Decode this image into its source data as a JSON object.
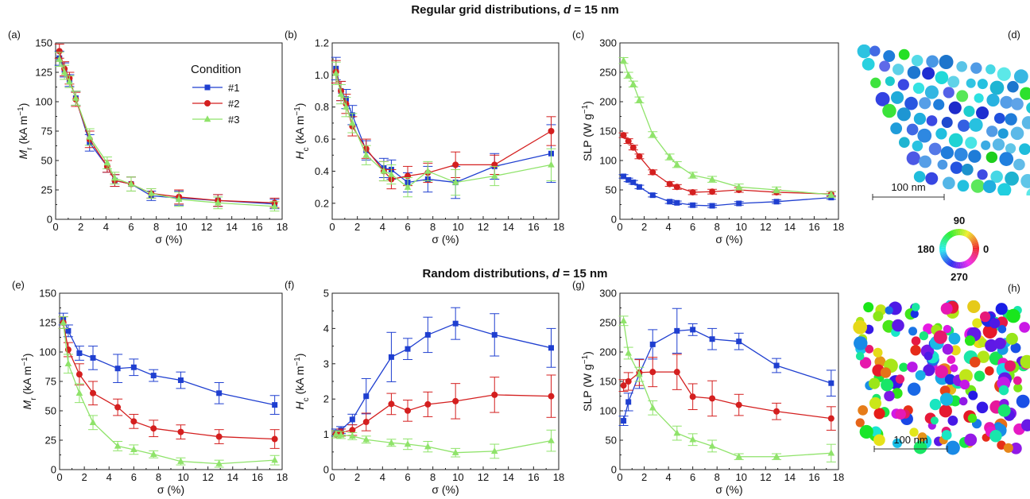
{
  "figure": {
    "row_titles": [
      {
        "prefix": "Regular grid distributions, ",
        "var": "d",
        "suffix": " = 15 nm"
      },
      {
        "prefix": "Random distributions, ",
        "var": "d",
        "suffix": " = 15 nm"
      }
    ],
    "legend": {
      "title": "Condition",
      "entries": [
        "#1",
        "#2",
        "#3"
      ]
    },
    "series_colors": [
      "#1f3fd0",
      "#d41f1f",
      "#8fe36a"
    ],
    "scale_bar_label": "100 nm",
    "colorwheel_labels": {
      "top": "90",
      "left": "180",
      "right": "0",
      "bottom": "270"
    }
  },
  "chart_data": [
    {
      "type": "line",
      "panel": "(a)",
      "xlabel": "σ (%)",
      "ylabel_main": "M",
      "ylabel_sub": "r",
      "ylabel_unit": " (kA m",
      "xlim": [
        0,
        18
      ],
      "ylim": [
        0,
        150
      ],
      "xticks": [
        0,
        2,
        4,
        6,
        8,
        10,
        12,
        14,
        16,
        18
      ],
      "yticks": [
        0,
        25,
        50,
        75,
        100,
        125,
        150
      ],
      "series": [
        {
          "name": "#1",
          "marker": "square",
          "x": [
            0.3,
            0.7,
            1.1,
            1.6,
            2.7,
            4.1,
            4.7,
            6.0,
            7.6,
            9.8,
            12.9,
            17.4
          ],
          "y": [
            137,
            127,
            118,
            103,
            65,
            45,
            33,
            30,
            20,
            18,
            16,
            13
          ],
          "err": [
            6,
            6,
            5,
            6,
            7,
            5,
            5,
            6,
            4,
            6,
            5,
            4
          ]
        },
        {
          "name": "#2",
          "marker": "circle",
          "x": [
            0.3,
            0.7,
            1.1,
            1.6,
            2.7,
            4.1,
            4.7,
            6.0,
            7.6,
            9.8,
            12.9,
            17.4
          ],
          "y": [
            143,
            128,
            120,
            102,
            68,
            45,
            33,
            30,
            22,
            19,
            16,
            14
          ],
          "err": [
            6,
            6,
            5,
            6,
            7,
            5,
            5,
            6,
            4,
            6,
            5,
            4
          ]
        },
        {
          "name": "#3",
          "marker": "triangle",
          "x": [
            0.3,
            0.7,
            1.1,
            1.6,
            2.7,
            4.1,
            4.7,
            6.0,
            7.6,
            9.8,
            12.9,
            17.4
          ],
          "y": [
            136,
            125,
            117,
            103,
            70,
            48,
            35,
            30,
            22,
            17,
            14,
            11
          ],
          "err": [
            6,
            6,
            5,
            6,
            7,
            5,
            5,
            6,
            4,
            6,
            5,
            4
          ]
        }
      ]
    },
    {
      "type": "line",
      "panel": "(b)",
      "xlabel": "σ (%)",
      "ylabel_main": "H",
      "ylabel_sub": "c",
      "ylabel_unit": " (kA m",
      "xlim": [
        0,
        18
      ],
      "ylim": [
        0.1,
        1.2
      ],
      "xticks": [
        0,
        2,
        4,
        6,
        8,
        10,
        12,
        14,
        16,
        18
      ],
      "yticks": [
        0.2,
        0.4,
        0.6,
        0.8,
        1.0,
        1.2
      ],
      "series": [
        {
          "name": "#1",
          "marker": "square",
          "x": [
            0.3,
            0.7,
            1.1,
            1.6,
            2.7,
            4.1,
            4.7,
            6.0,
            7.6,
            9.8,
            12.9,
            17.4
          ],
          "y": [
            1.04,
            0.9,
            0.85,
            0.75,
            0.53,
            0.42,
            0.41,
            0.33,
            0.35,
            0.33,
            0.43,
            0.51
          ],
          "err": [
            0.07,
            0.06,
            0.06,
            0.06,
            0.06,
            0.06,
            0.06,
            0.06,
            0.08,
            0.1,
            0.08,
            0.18
          ]
        },
        {
          "name": "#2",
          "marker": "circle",
          "x": [
            0.3,
            0.7,
            1.1,
            1.6,
            2.7,
            4.1,
            4.7,
            6.0,
            7.6,
            9.8,
            12.9,
            17.4
          ],
          "y": [
            1.02,
            0.9,
            0.82,
            0.68,
            0.54,
            0.4,
            0.35,
            0.37,
            0.39,
            0.44,
            0.44,
            0.65
          ],
          "err": [
            0.07,
            0.06,
            0.06,
            0.06,
            0.06,
            0.06,
            0.06,
            0.06,
            0.06,
            0.08,
            0.06,
            0.09
          ]
        },
        {
          "name": "#3",
          "marker": "triangle",
          "x": [
            0.3,
            0.7,
            1.1,
            1.6,
            2.7,
            4.1,
            4.7,
            6.0,
            7.6,
            9.8,
            12.9,
            17.4
          ],
          "y": [
            1.01,
            0.88,
            0.8,
            0.7,
            0.5,
            0.4,
            0.38,
            0.3,
            0.4,
            0.33,
            0.37,
            0.44
          ],
          "err": [
            0.07,
            0.06,
            0.06,
            0.06,
            0.06,
            0.06,
            0.06,
            0.06,
            0.06,
            0.08,
            0.06,
            0.1
          ]
        }
      ]
    },
    {
      "type": "line",
      "panel": "(c)",
      "xlabel": "σ (%)",
      "ylabel_main": "SLP",
      "ylabel_sub": "",
      "ylabel_unit": " (W g",
      "xlim": [
        0,
        18
      ],
      "ylim": [
        0,
        300
      ],
      "xticks": [
        0,
        2,
        4,
        6,
        8,
        10,
        12,
        14,
        16,
        18
      ],
      "yticks": [
        0,
        50,
        100,
        150,
        200,
        250,
        300
      ],
      "series": [
        {
          "name": "#1",
          "marker": "square",
          "x": [
            0.3,
            0.7,
            1.1,
            1.6,
            2.7,
            4.1,
            4.7,
            6.0,
            7.6,
            9.8,
            12.9,
            17.4
          ],
          "y": [
            73,
            67,
            63,
            55,
            41,
            30,
            28,
            24,
            23,
            27,
            30,
            37
          ],
          "err": [
            3,
            3,
            3,
            3,
            3,
            3,
            3,
            3,
            3,
            3,
            3,
            3
          ]
        },
        {
          "name": "#2",
          "marker": "circle",
          "x": [
            0.3,
            0.7,
            1.1,
            1.6,
            2.7,
            4.1,
            4.7,
            6.0,
            7.6,
            9.8,
            12.9,
            17.4
          ],
          "y": [
            143,
            133,
            122,
            107,
            80,
            60,
            55,
            46,
            47,
            50,
            46,
            43
          ],
          "err": [
            4,
            4,
            4,
            4,
            4,
            4,
            4,
            4,
            4,
            4,
            4,
            4
          ]
        },
        {
          "name": "#3",
          "marker": "triangle",
          "x": [
            0.3,
            0.7,
            1.1,
            1.6,
            2.7,
            4.1,
            4.7,
            6.0,
            7.6,
            9.8,
            12.9,
            17.4
          ],
          "y": [
            270,
            245,
            230,
            203,
            144,
            106,
            93,
            75,
            68,
            55,
            50,
            42
          ],
          "err": [
            5,
            5,
            5,
            5,
            5,
            5,
            5,
            5,
            5,
            5,
            5,
            5
          ]
        }
      ]
    },
    {
      "type": "line",
      "panel": "(e)",
      "xlabel": "σ (%)",
      "ylabel_main": "M",
      "ylabel_sub": "r",
      "ylabel_unit": " (kA m",
      "xlim": [
        0,
        18
      ],
      "ylim": [
        0,
        150
      ],
      "xticks": [
        0,
        2,
        4,
        6,
        8,
        10,
        12,
        14,
        16,
        18
      ],
      "yticks": [
        0,
        25,
        50,
        75,
        100,
        125,
        150
      ],
      "series": [
        {
          "name": "#1",
          "marker": "square",
          "x": [
            0.3,
            0.7,
            1.6,
            2.7,
            4.7,
            6.0,
            7.6,
            9.8,
            12.9,
            17.4
          ],
          "y": [
            128,
            118,
            99,
            95,
            86,
            87,
            80,
            76,
            65,
            55
          ],
          "err": [
            5,
            5,
            6,
            10,
            12,
            7,
            5,
            7,
            9,
            8
          ]
        },
        {
          "name": "#2",
          "marker": "circle",
          "x": [
            0.3,
            0.7,
            1.6,
            2.7,
            4.7,
            6.0,
            7.6,
            9.8,
            12.9,
            17.4
          ],
          "y": [
            125,
            102,
            81,
            65,
            53,
            41,
            35,
            32,
            28,
            26
          ],
          "err": [
            5,
            6,
            9,
            10,
            7,
            6,
            7,
            6,
            6,
            8
          ]
        },
        {
          "name": "#3",
          "marker": "triangle",
          "x": [
            0.3,
            0.7,
            1.6,
            2.7,
            4.7,
            6.0,
            7.6,
            9.8,
            12.9,
            17.4
          ],
          "y": [
            125,
            90,
            65,
            40,
            20,
            17,
            13,
            7,
            5,
            8
          ],
          "err": [
            5,
            8,
            8,
            6,
            4,
            4,
            3,
            3,
            3,
            4
          ]
        }
      ]
    },
    {
      "type": "line",
      "panel": "(f)",
      "xlabel": "σ (%)",
      "ylabel_main": "H",
      "ylabel_sub": "c",
      "ylabel_unit": " (kA m",
      "xlim": [
        0,
        18
      ],
      "ylim": [
        0,
        5
      ],
      "xticks": [
        0,
        2,
        4,
        6,
        8,
        10,
        12,
        14,
        16,
        18
      ],
      "yticks": [
        0,
        1,
        2,
        3,
        4,
        5
      ],
      "series": [
        {
          "name": "#1",
          "marker": "square",
          "x": [
            0.3,
            0.7,
            1.6,
            2.7,
            4.7,
            6.0,
            7.6,
            9.8,
            12.9,
            17.4
          ],
          "y": [
            1.05,
            1.12,
            1.42,
            2.08,
            3.19,
            3.42,
            3.82,
            4.14,
            3.82,
            3.45
          ],
          "err": [
            0.1,
            0.1,
            0.15,
            0.5,
            0.7,
            0.3,
            0.5,
            0.45,
            0.6,
            0.55
          ]
        },
        {
          "name": "#2",
          "marker": "circle",
          "x": [
            0.3,
            0.7,
            1.6,
            2.7,
            4.7,
            6.0,
            7.6,
            9.8,
            12.9,
            17.4
          ],
          "y": [
            1.0,
            1.05,
            1.12,
            1.35,
            1.86,
            1.67,
            1.85,
            1.94,
            2.12,
            2.08
          ],
          "err": [
            0.1,
            0.1,
            0.15,
            0.25,
            0.3,
            0.3,
            0.35,
            0.5,
            0.5,
            0.6
          ]
        },
        {
          "name": "#3",
          "marker": "triangle",
          "x": [
            0.3,
            0.7,
            1.6,
            2.7,
            4.7,
            6.0,
            7.6,
            9.8,
            12.9,
            17.4
          ],
          "y": [
            1.0,
            0.98,
            0.95,
            0.85,
            0.76,
            0.72,
            0.65,
            0.48,
            0.52,
            0.82
          ],
          "err": [
            0.1,
            0.1,
            0.1,
            0.1,
            0.1,
            0.15,
            0.15,
            0.12,
            0.2,
            0.3
          ]
        }
      ]
    },
    {
      "type": "line",
      "panel": "(g)",
      "xlabel": "σ (%)",
      "ylabel_main": "SLP",
      "ylabel_sub": "",
      "ylabel_unit": " (W g",
      "xlim": [
        0,
        18
      ],
      "ylim": [
        0,
        300
      ],
      "xticks": [
        0,
        2,
        4,
        6,
        8,
        10,
        12,
        14,
        16,
        18
      ],
      "yticks": [
        0,
        50,
        100,
        150,
        200,
        250,
        300
      ],
      "series": [
        {
          "name": "#1",
          "marker": "square",
          "x": [
            0.3,
            0.7,
            1.6,
            2.7,
            4.7,
            6.0,
            7.6,
            9.8,
            12.9,
            17.4
          ],
          "y": [
            83,
            115,
            163,
            213,
            236,
            238,
            222,
            218,
            177,
            147
          ],
          "err": [
            8,
            15,
            25,
            25,
            38,
            10,
            18,
            14,
            12,
            22
          ]
        },
        {
          "name": "#2",
          "marker": "circle",
          "x": [
            0.3,
            0.7,
            1.6,
            2.7,
            4.7,
            6.0,
            7.6,
            9.8,
            12.9,
            17.4
          ],
          "y": [
            143,
            150,
            165,
            166,
            166,
            124,
            121,
            110,
            99,
            87
          ],
          "err": [
            10,
            15,
            22,
            25,
            30,
            22,
            30,
            18,
            14,
            20
          ]
        },
        {
          "name": "#3",
          "marker": "triangle",
          "x": [
            0.3,
            0.7,
            1.6,
            2.7,
            4.7,
            6.0,
            7.6,
            9.8,
            12.9,
            17.4
          ],
          "y": [
            253,
            198,
            162,
            105,
            62,
            51,
            40,
            22,
            22,
            28
          ],
          "err": [
            8,
            10,
            12,
            12,
            12,
            10,
            10,
            5,
            5,
            15
          ]
        }
      ]
    }
  ]
}
